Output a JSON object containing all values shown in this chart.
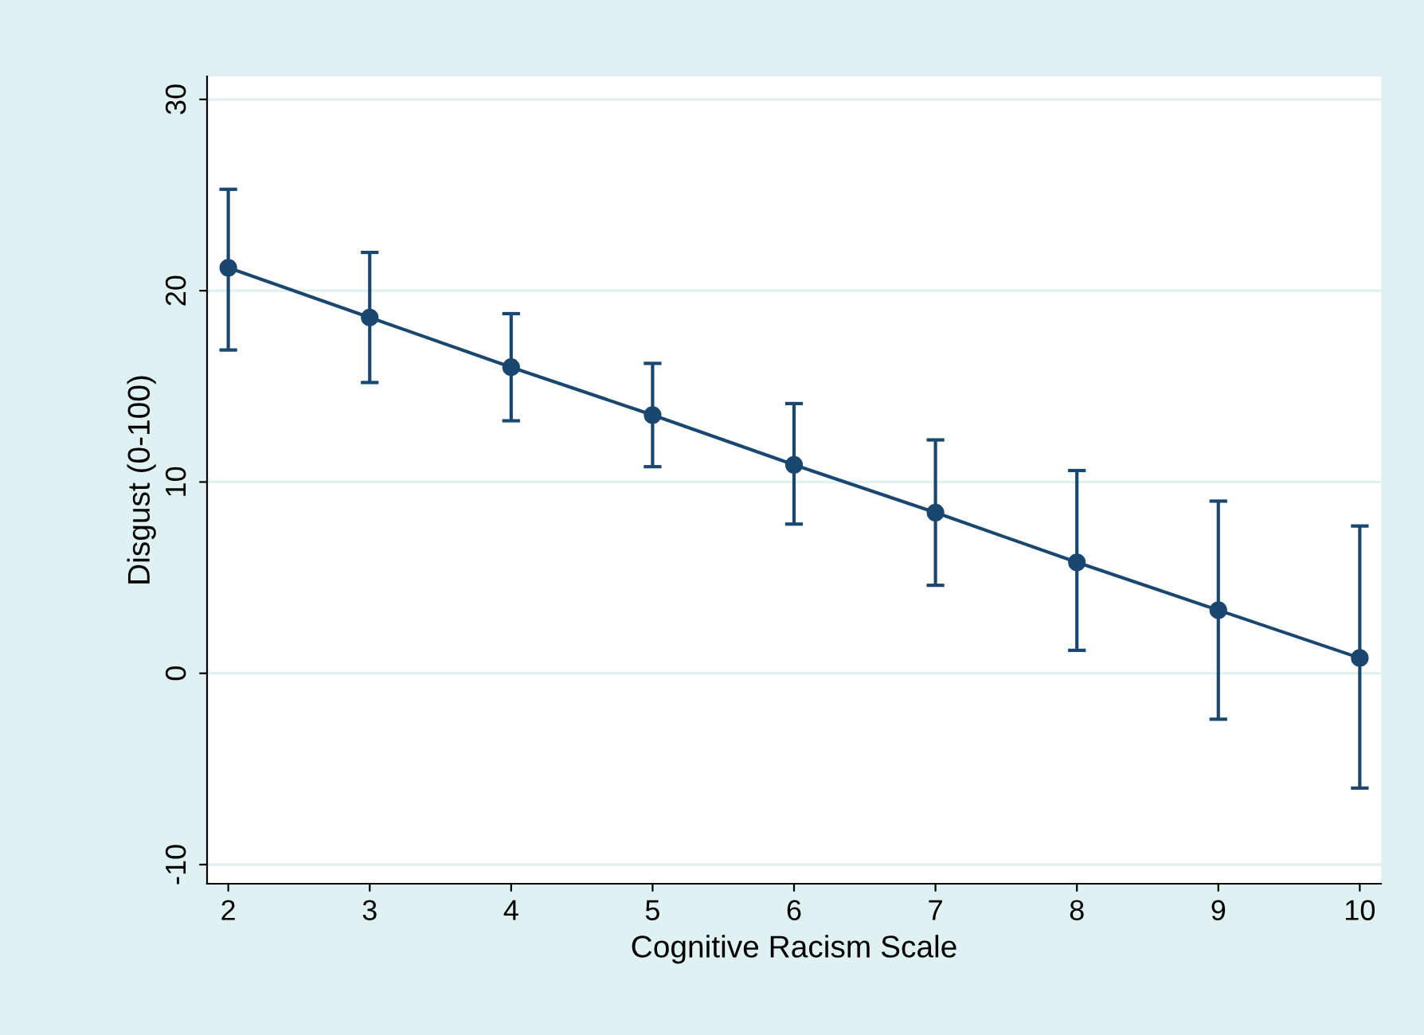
{
  "chart_data": {
    "type": "line",
    "xlabel": "Cognitive Racism Scale",
    "ylabel": "Disgust (0-100)",
    "x": [
      2,
      3,
      4,
      5,
      6,
      7,
      8,
      9,
      10
    ],
    "series": [
      {
        "color": "#1a476f",
        "values": [
          21.2,
          18.6,
          16.0,
          13.5,
          10.9,
          8.4,
          5.8,
          3.3,
          0.8
        ],
        "errors": [
          [
            16.9,
            25.3
          ],
          [
            15.2,
            22.0
          ],
          [
            13.2,
            18.8
          ],
          [
            10.8,
            16.2
          ],
          [
            7.8,
            14.1
          ],
          [
            4.6,
            12.2
          ],
          [
            1.2,
            10.6
          ],
          [
            -2.4,
            9.0
          ],
          [
            -6.0,
            7.7
          ]
        ]
      }
    ],
    "xlim": [
      1.85,
      10.15
    ],
    "ylim": [
      -11,
      31.2
    ],
    "xticks": [
      2,
      3,
      4,
      5,
      6,
      7,
      8,
      9,
      10
    ],
    "yticks": [
      {
        "value": -10,
        "label": "-10"
      },
      0,
      10,
      20,
      30
    ],
    "grid": "y",
    "marker": "circle",
    "line_style": "solid",
    "legend": false
  }
}
